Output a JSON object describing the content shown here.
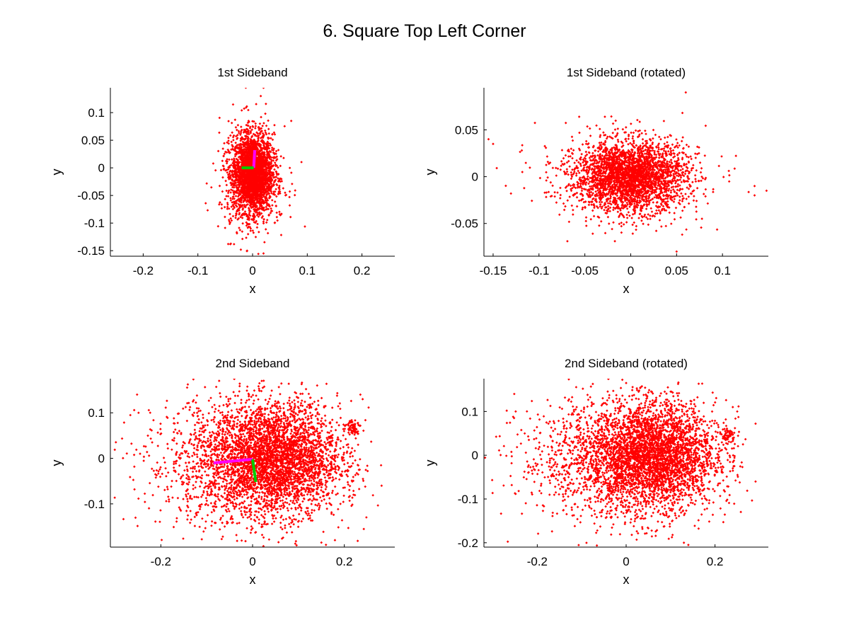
{
  "figure_title": "6. Square Top Left Corner",
  "colors": {
    "points": "#ff0000",
    "axis1": "#ff00ff",
    "axis2": "#00cc00",
    "axes": "#000000"
  },
  "chart_data": [
    {
      "type": "scatter",
      "title": "1st Sideband",
      "xlabel": "x",
      "ylabel": "y",
      "xlim": [
        -0.26,
        0.26
      ],
      "ylim": [
        -0.16,
        0.145
      ],
      "xticks": [
        -0.2,
        -0.1,
        0,
        0.1,
        0.2
      ],
      "yticks": [
        -0.15,
        -0.1,
        -0.05,
        0,
        0.05,
        0.1
      ],
      "xtick_labels": [
        "-0.2",
        "-0.1",
        "0",
        "0.1",
        "0.2"
      ],
      "ytick_labels": [
        "-0.15",
        "-0.1",
        "-0.05",
        "0",
        "0.05",
        "0.1"
      ],
      "grid": false,
      "clusters": [
        {
          "cx": 0.0,
          "cy": -0.01,
          "sx": 0.018,
          "sy": 0.035,
          "n": 2600,
          "dense": true
        },
        {
          "cx": 0.0,
          "cy": -0.02,
          "sx": 0.03,
          "sy": 0.05,
          "n": 500
        }
      ],
      "outliers": [
        [
          0.02,
          0.145
        ],
        [
          0.015,
          0.13
        ],
        [
          0.02,
          -0.155
        ],
        [
          -0.01,
          -0.15
        ]
      ],
      "axis_lines": [
        {
          "name": "principal-axis-1",
          "color": "#ff00ff",
          "x": [
            0.002,
            0.004
          ],
          "y": [
            0.0,
            0.032
          ]
        },
        {
          "name": "principal-axis-2",
          "color": "#00cc00",
          "x": [
            0.002,
            -0.02
          ],
          "y": [
            0.0,
            0.0
          ]
        }
      ]
    },
    {
      "type": "scatter",
      "title": "1st Sideband (rotated)",
      "xlabel": "x",
      "ylabel": "y",
      "xlim": [
        -0.16,
        0.15
      ],
      "ylim": [
        -0.085,
        0.095
      ],
      "xticks": [
        -0.15,
        -0.1,
        -0.05,
        0,
        0.05,
        0.1
      ],
      "yticks": [
        -0.05,
        0,
        0.05
      ],
      "xtick_labels": [
        "-0.15",
        "-0.1",
        "-0.05",
        "0",
        "0.05",
        "0.1"
      ],
      "ytick_labels": [
        "-0.05",
        "0",
        "0.05"
      ],
      "grid": false,
      "clusters": [
        {
          "cx": 0.0,
          "cy": 0.0,
          "sx": 0.03,
          "sy": 0.018,
          "n": 2600,
          "dense": true
        },
        {
          "cx": -0.01,
          "cy": 0.0,
          "sx": 0.045,
          "sy": 0.025,
          "n": 500
        }
      ],
      "outliers": [
        [
          0.135,
          -0.02
        ],
        [
          0.148,
          -0.015
        ],
        [
          0.135,
          -0.01
        ],
        [
          -0.155,
          0.04
        ],
        [
          -0.15,
          0.035
        ],
        [
          0.06,
          0.09
        ],
        [
          0.05,
          -0.08
        ]
      ],
      "axis_lines": []
    },
    {
      "type": "scatter",
      "title": "2nd Sideband",
      "xlabel": "x",
      "ylabel": "y",
      "xlim": [
        -0.31,
        0.31
      ],
      "ylim": [
        -0.195,
        0.175
      ],
      "xticks": [
        -0.2,
        0,
        0.2
      ],
      "yticks": [
        -0.1,
        0,
        0.1
      ],
      "xtick_labels": [
        "-0.2",
        "0",
        "0.2"
      ],
      "ytick_labels": [
        "-0.1",
        "0",
        "0.1"
      ],
      "grid": false,
      "clusters": [
        {
          "cx": 0.05,
          "cy": 0.0,
          "sx": 0.07,
          "sy": 0.06,
          "n": 3000,
          "dense": true
        },
        {
          "cx": -0.02,
          "cy": -0.01,
          "sx": 0.11,
          "sy": 0.07,
          "n": 1400
        },
        {
          "cx": 0.22,
          "cy": 0.07,
          "sx": 0.008,
          "sy": 0.008,
          "n": 60
        }
      ],
      "outliers": [
        [
          0.16,
          -0.19
        ],
        [
          0.15,
          -0.185
        ],
        [
          0.235,
          0.14
        ],
        [
          0.24,
          0.13
        ],
        [
          0.02,
          0.17
        ]
      ],
      "axis_lines": [
        {
          "name": "principal-axis-1",
          "color": "#ff00ff",
          "x": [
            0.0,
            -0.085
          ],
          "y": [
            -0.002,
            -0.01
          ]
        },
        {
          "name": "principal-axis-2",
          "color": "#00cc00",
          "x": [
            0.0,
            0.007
          ],
          "y": [
            -0.002,
            -0.052
          ]
        }
      ]
    },
    {
      "type": "scatter",
      "title": "2nd Sideband (rotated)",
      "xlabel": "x",
      "ylabel": "y",
      "xlim": [
        -0.32,
        0.32
      ],
      "ylim": [
        -0.21,
        0.175
      ],
      "xticks": [
        -0.2,
        0,
        0.2
      ],
      "yticks": [
        -0.2,
        -0.1,
        0,
        0.1
      ],
      "xtick_labels": [
        "-0.2",
        "0",
        "0.2"
      ],
      "ytick_labels": [
        "-0.2",
        "-0.1",
        "0",
        "0.1"
      ],
      "grid": false,
      "clusters": [
        {
          "cx": 0.06,
          "cy": 0.0,
          "sx": 0.07,
          "sy": 0.06,
          "n": 3000,
          "dense": true
        },
        {
          "cx": -0.02,
          "cy": -0.01,
          "sx": 0.11,
          "sy": 0.07,
          "n": 1400
        },
        {
          "cx": 0.23,
          "cy": 0.045,
          "sx": 0.008,
          "sy": 0.008,
          "n": 60
        }
      ],
      "outliers": [
        [
          0.14,
          -0.205
        ],
        [
          0.13,
          -0.2
        ],
        [
          0.24,
          0.11
        ],
        [
          0.25,
          0.1
        ],
        [
          0.0,
          0.165
        ]
      ],
      "axis_lines": []
    }
  ]
}
